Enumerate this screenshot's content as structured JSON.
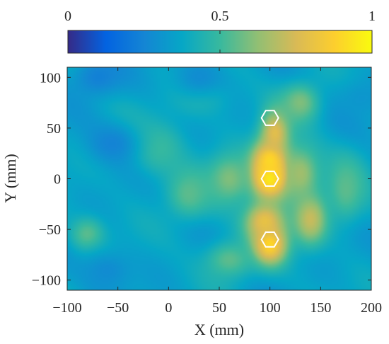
{
  "chart_data": {
    "type": "heatmap",
    "title": "",
    "xlabel": "X (mm)",
    "ylabel": "Y (mm)",
    "xlim": [
      -100,
      200
    ],
    "ylim": [
      -110,
      110
    ],
    "x_ticks": [
      -100,
      -50,
      0,
      50,
      100,
      150,
      200
    ],
    "y_ticks": [
      100,
      50,
      0,
      -50,
      -100
    ],
    "colorbar": {
      "colormap": "parula",
      "range": [
        0,
        1
      ],
      "ticks": [
        0,
        0.5,
        1
      ],
      "tick_labels": [
        "0",
        "0.5",
        "1"
      ],
      "placement": "top"
    },
    "heat_sources": [
      {
        "x": 100,
        "y": 0,
        "intensity": 0.95,
        "sx": 14,
        "sy": 16
      },
      {
        "x": 100,
        "y": 18,
        "intensity": 0.9,
        "sx": 12,
        "sy": 14
      },
      {
        "x": 105,
        "y": 45,
        "intensity": 0.78,
        "sx": 10,
        "sy": 16
      },
      {
        "x": 100,
        "y": -65,
        "intensity": 0.9,
        "sx": 12,
        "sy": 14
      },
      {
        "x": 95,
        "y": -42,
        "intensity": 0.8,
        "sx": 14,
        "sy": 14
      },
      {
        "x": 140,
        "y": -40,
        "intensity": 0.72,
        "sx": 12,
        "sy": 18
      },
      {
        "x": 130,
        "y": 5,
        "intensity": 0.65,
        "sx": 14,
        "sy": 20
      },
      {
        "x": 130,
        "y": 75,
        "intensity": 0.6,
        "sx": 14,
        "sy": 14
      },
      {
        "x": 60,
        "y": 0,
        "intensity": 0.6,
        "sx": 16,
        "sy": 18
      },
      {
        "x": 20,
        "y": -15,
        "intensity": 0.55,
        "sx": 16,
        "sy": 18
      },
      {
        "x": 60,
        "y": -80,
        "intensity": 0.55,
        "sx": 18,
        "sy": 14
      },
      {
        "x": -10,
        "y": 30,
        "intensity": 0.5,
        "sx": 20,
        "sy": 20
      },
      {
        "x": -80,
        "y": -55,
        "intensity": 0.55,
        "sx": 12,
        "sy": 12
      },
      {
        "x": 175,
        "y": -10,
        "intensity": 0.55,
        "sx": 14,
        "sy": 24
      },
      {
        "x": 30,
        "y": 80,
        "intensity": 0.45,
        "sx": 22,
        "sy": 14
      }
    ],
    "cold_regions": [
      {
        "x": -70,
        "y": 100,
        "intensity": 0.2
      },
      {
        "x": -55,
        "y": 35,
        "intensity": 0.22
      },
      {
        "x": -60,
        "y": -90,
        "intensity": 0.25
      },
      {
        "x": 30,
        "y": 100,
        "intensity": 0.25
      },
      {
        "x": 190,
        "y": 80,
        "intensity": 0.3
      }
    ],
    "markers": [
      {
        "shape": "hexagon",
        "x": 100,
        "y": 60
      },
      {
        "shape": "hexagon",
        "x": 100,
        "y": 0
      },
      {
        "shape": "hexagon",
        "x": 100,
        "y": -60
      }
    ]
  }
}
